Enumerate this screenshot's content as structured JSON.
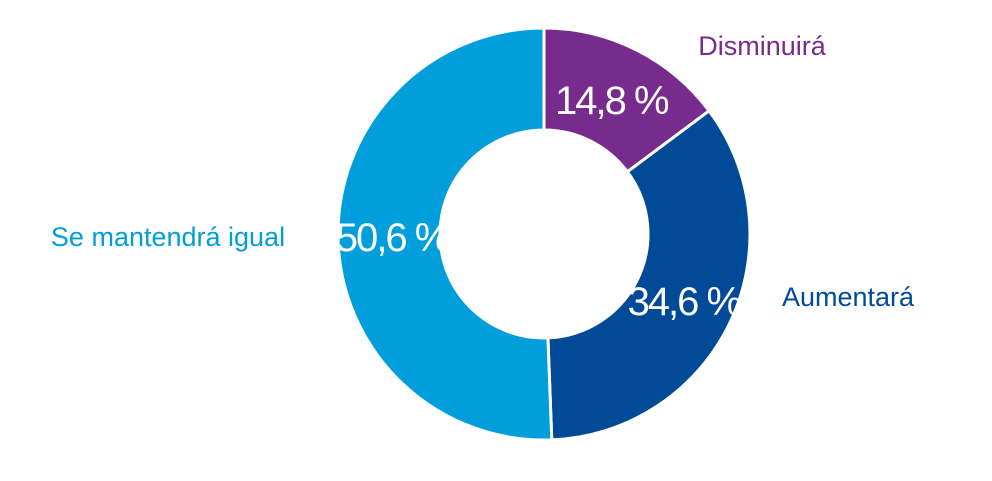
{
  "chart_data": {
    "type": "pie",
    "donut": true,
    "categories": [
      "Disminuirá",
      "Aumentará",
      "Se mantendrá igual"
    ],
    "values": [
      14.8,
      34.6,
      50.6
    ],
    "value_labels": [
      "14,8 %",
      "34,6 %",
      "50,6 %"
    ],
    "colors": [
      "#772c8d",
      "#004a98",
      "#009fdb"
    ],
    "title": "",
    "legend": "none"
  }
}
